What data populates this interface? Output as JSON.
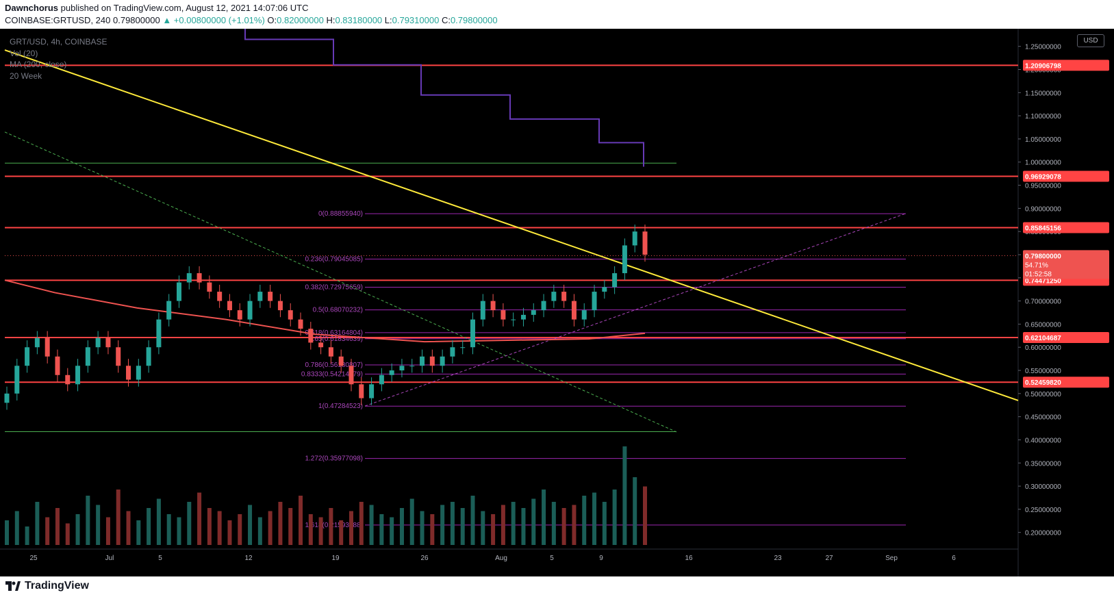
{
  "header": {
    "author": "Dawnchorus",
    "published": "published on TradingView.com, August 12, 2021 14:07:06 UTC"
  },
  "ohlc": {
    "symbol": "COINBASE:GRTUSD, 240",
    "price": "0.79800000",
    "change": "▲ +0.00800000 (+1.01%)",
    "o_label": "O:",
    "o": "0.82000000",
    "h_label": "H:",
    "h": "0.83180000",
    "l_label": "L:",
    "l": "0.79310000",
    "c_label": "C:",
    "c": "0.79800000"
  },
  "legend": {
    "symbol_line": "GRT/USD, 4h, COINBASE",
    "vol": "Vol (20)",
    "ma": "MA (200, close)",
    "week": "20 Week"
  },
  "currency_button": "USD",
  "footer": {
    "brand": "TradingView"
  },
  "colors": {
    "background": "#000000",
    "up": "#26a69a",
    "down": "#ef5350",
    "hline": "#ff4444",
    "trend": "#ffeb3b",
    "fib": "#9c27b0",
    "ma": "#ef5350",
    "weekly": "#673ab7",
    "green_line": "#4caf50"
  },
  "chart_data": {
    "type": "line",
    "title": "GRT/USD, 4h, COINBASE",
    "y_axis_ticks": [
      "1.25000000",
      "1.20000000",
      "1.15000000",
      "1.10000000",
      "1.05000000",
      "1.00000000",
      "0.95000000",
      "0.90000000",
      "0.85000000",
      "0.80000000",
      "0.75000000",
      "0.70000000",
      "0.65000000",
      "0.60000000",
      "0.55000000",
      "0.50000000",
      "0.45000000",
      "0.40000000",
      "0.35000000",
      "0.30000000",
      "0.25000000",
      "0.20000000"
    ],
    "x_axis_ticks": [
      "25",
      "Jul",
      "5",
      "12",
      "19",
      "26",
      "Aug",
      "5",
      "9",
      "16",
      "23",
      "27",
      "Sep",
      "6"
    ],
    "ylim": [
      0.167,
      1.288
    ],
    "horizontal_levels": [
      1.20906798,
      0.96929078,
      0.85845156,
      0.7447125,
      0.62104687,
      0.5245982
    ],
    "price_labels": [
      {
        "value": 1.20906798,
        "text": "1.20906798",
        "color": "#ff4444"
      },
      {
        "value": 0.96929078,
        "text": "0.96929078",
        "color": "#ff4444"
      },
      {
        "value": 0.85845156,
        "text": "0.85845156",
        "color": "#ff4444"
      },
      {
        "value": 0.7447125,
        "text": "0.74471250",
        "color": "#ff4444"
      },
      {
        "value": 0.62104687,
        "text": "0.62104687",
        "color": "#ff4444"
      },
      {
        "value": 0.5245982,
        "text": "0.52459820",
        "color": "#ff4444"
      }
    ],
    "last_price": {
      "value": 0.798,
      "text": "0.79800000",
      "pct": "54.71%",
      "countdown": "01:52:58"
    },
    "fib_levels": [
      {
        "ratio": "0",
        "value": 0.8885594,
        "text": "0(0.88855940)"
      },
      {
        "ratio": "0.236",
        "value": 0.79045085,
        "text": "0.236(0.79045085)"
      },
      {
        "ratio": "0.382",
        "value": 0.72975659,
        "text": "0.382(0.72975659)"
      },
      {
        "ratio": "0.5",
        "value": 0.68070232,
        "text": "0.5(0.68070232)"
      },
      {
        "ratio": "0.618",
        "value": 0.63164804,
        "text": "0.618(0.63164804)"
      },
      {
        "ratio": "0.65",
        "value": 0.61834639,
        "text": "0.65(0.61834639)"
      },
      {
        "ratio": "0.786",
        "value": 0.56180807,
        "text": "0.786(0.56180807)"
      },
      {
        "ratio": "0.8333",
        "value": 0.54214479,
        "text": "0.8333(0.54214479)"
      },
      {
        "ratio": "1",
        "value": 0.47284523,
        "text": "1(0.47284523)"
      },
      {
        "ratio": "1.272",
        "value": 0.35977098,
        "text": "1.272(0.35977098)"
      },
      {
        "ratio": "1.618",
        "value": 0.21593388,
        "text": "1.618(0.21593388)"
      }
    ],
    "series": [
      {
        "name": "20 Week",
        "values": [
          1.29,
          1.265,
          1.21,
          1.145,
          1.093,
          1.042,
          0.99
        ]
      },
      {
        "name": "MA (200, close)",
        "values": [
          0.745,
          0.718,
          0.685,
          0.66,
          0.628,
          0.612,
          0.618,
          0.63
        ]
      }
    ],
    "candles_close": [
      0.5,
      0.56,
      0.6,
      0.62,
      0.58,
      0.54,
      0.52,
      0.56,
      0.6,
      0.62,
      0.6,
      0.56,
      0.53,
      0.56,
      0.6,
      0.66,
      0.7,
      0.74,
      0.76,
      0.74,
      0.72,
      0.7,
      0.68,
      0.66,
      0.7,
      0.72,
      0.7,
      0.68,
      0.66,
      0.64,
      0.61,
      0.6,
      0.58,
      0.56,
      0.52,
      0.49,
      0.52,
      0.54,
      0.55,
      0.56,
      0.56,
      0.58,
      0.56,
      0.58,
      0.6,
      0.6,
      0.66,
      0.7,
      0.68,
      0.66,
      0.66,
      0.67,
      0.68,
      0.7,
      0.72,
      0.7,
      0.66,
      0.68,
      0.72,
      0.73,
      0.76,
      0.82,
      0.85,
      0.8
    ],
    "legend_position": "top-left"
  }
}
